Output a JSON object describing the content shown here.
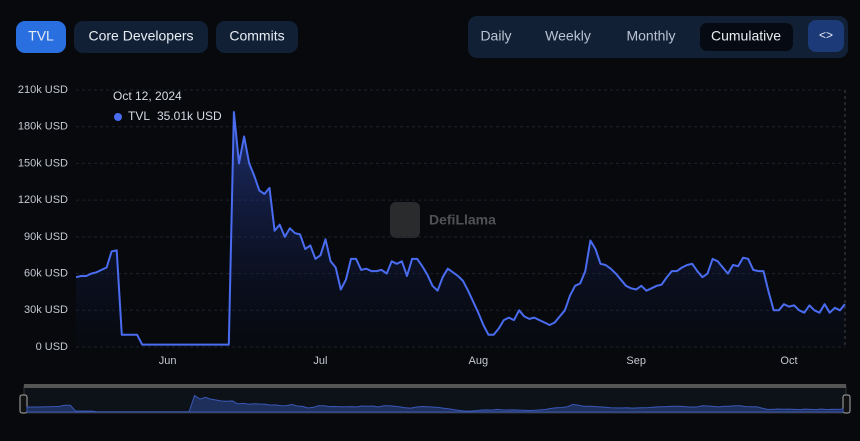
{
  "controls": {
    "left_tabs": [
      "TVL",
      "Core Developers",
      "Commits"
    ],
    "right_tabs": [
      "Daily",
      "Weekly",
      "Monthly",
      "Cumulative"
    ],
    "embed_icon": "<>"
  },
  "watermark": "DefiLlama",
  "tooltip": {
    "date": "Oct 12, 2024",
    "label": "TVL",
    "value": "35.01k USD"
  },
  "chart_data": {
    "type": "line",
    "categories": [
      null,
      null,
      null,
      null,
      null,
      null,
      null,
      null,
      null,
      null,
      null,
      null,
      null,
      null,
      null,
      null,
      null,
      null,
      "Jun",
      null,
      null,
      null,
      null,
      null,
      null,
      null,
      null,
      null,
      null,
      null,
      null,
      null,
      null,
      null,
      null,
      null,
      null,
      null,
      null,
      null,
      null,
      null,
      null,
      null,
      null,
      null,
      null,
      null,
      "Jul",
      null,
      null,
      null,
      null,
      null,
      null,
      null,
      null,
      null,
      null,
      null,
      null,
      null,
      null,
      null,
      null,
      null,
      null,
      null,
      null,
      null,
      null,
      null,
      null,
      null,
      null,
      null,
      null,
      null,
      null,
      "Aug",
      null,
      null,
      null,
      null,
      null,
      null,
      null,
      null,
      null,
      null,
      null,
      null,
      null,
      null,
      null,
      null,
      null,
      null,
      null,
      null,
      null,
      null,
      null,
      null,
      null,
      null,
      null,
      null,
      null,
      null,
      "Sep",
      null,
      null,
      null,
      null,
      null,
      null,
      null,
      null,
      null,
      null,
      null,
      null,
      null,
      null,
      null,
      null,
      null,
      null,
      null,
      null,
      null,
      null,
      null,
      null,
      null,
      null,
      null,
      null,
      null,
      "Oct",
      null,
      null,
      null,
      null,
      null,
      null,
      null,
      null,
      null,
      null,
      null
    ],
    "series": [
      {
        "name": "TVL",
        "color": "#4a6cf0",
        "values": [
          57000,
          58000,
          58000,
          60000,
          61000,
          63000,
          65000,
          78000,
          79000,
          10000,
          10000,
          10000,
          10000,
          2000,
          2000,
          2000,
          2000,
          2000,
          2000,
          2000,
          2000,
          2000,
          2000,
          2000,
          2000,
          2000,
          2000,
          2000,
          2000,
          2000,
          2000,
          192000,
          150000,
          172000,
          150000,
          140000,
          128000,
          125000,
          130000,
          95000,
          100000,
          90000,
          97000,
          93000,
          92000,
          80000,
          83000,
          72000,
          75000,
          88000,
          70000,
          65000,
          47000,
          55000,
          72000,
          72000,
          63000,
          64000,
          62000,
          62000,
          63000,
          60000,
          70000,
          68000,
          70000,
          58000,
          72000,
          72000,
          66000,
          59000,
          50000,
          46000,
          57000,
          64000,
          61000,
          58000,
          54000,
          46000,
          37000,
          28000,
          18000,
          10000,
          10000,
          15000,
          22000,
          24000,
          22000,
          30000,
          25000,
          23000,
          24000,
          22000,
          20000,
          18000,
          20000,
          25000,
          30000,
          42000,
          50000,
          52000,
          62000,
          87000,
          80000,
          68000,
          67000,
          64000,
          60000,
          55000,
          50000,
          48000,
          47000,
          50000,
          46000,
          48000,
          50000,
          51000,
          57000,
          62000,
          62000,
          65000,
          67000,
          68000,
          62000,
          57000,
          60000,
          72000,
          70000,
          65000,
          60000,
          67000,
          66000,
          73000,
          72000,
          63000,
          62000,
          62000,
          45000,
          30000,
          30000,
          35000,
          33000,
          34000,
          30000,
          28000,
          34000,
          30000,
          28000,
          35000,
          28000,
          32000,
          30000,
          35010
        ]
      }
    ],
    "ylim": [
      0,
      210000
    ],
    "yticks": [
      {
        "value": 0,
        "label": "0 USD"
      },
      {
        "value": 30000,
        "label": "30k USD"
      },
      {
        "value": 60000,
        "label": "60k USD"
      },
      {
        "value": 90000,
        "label": "90k USD"
      },
      {
        "value": 120000,
        "label": "120k USD"
      },
      {
        "value": 150000,
        "label": "150k USD"
      },
      {
        "value": 180000,
        "label": "180k USD"
      },
      {
        "value": 210000,
        "label": "210k USD"
      }
    ],
    "grid": true
  }
}
